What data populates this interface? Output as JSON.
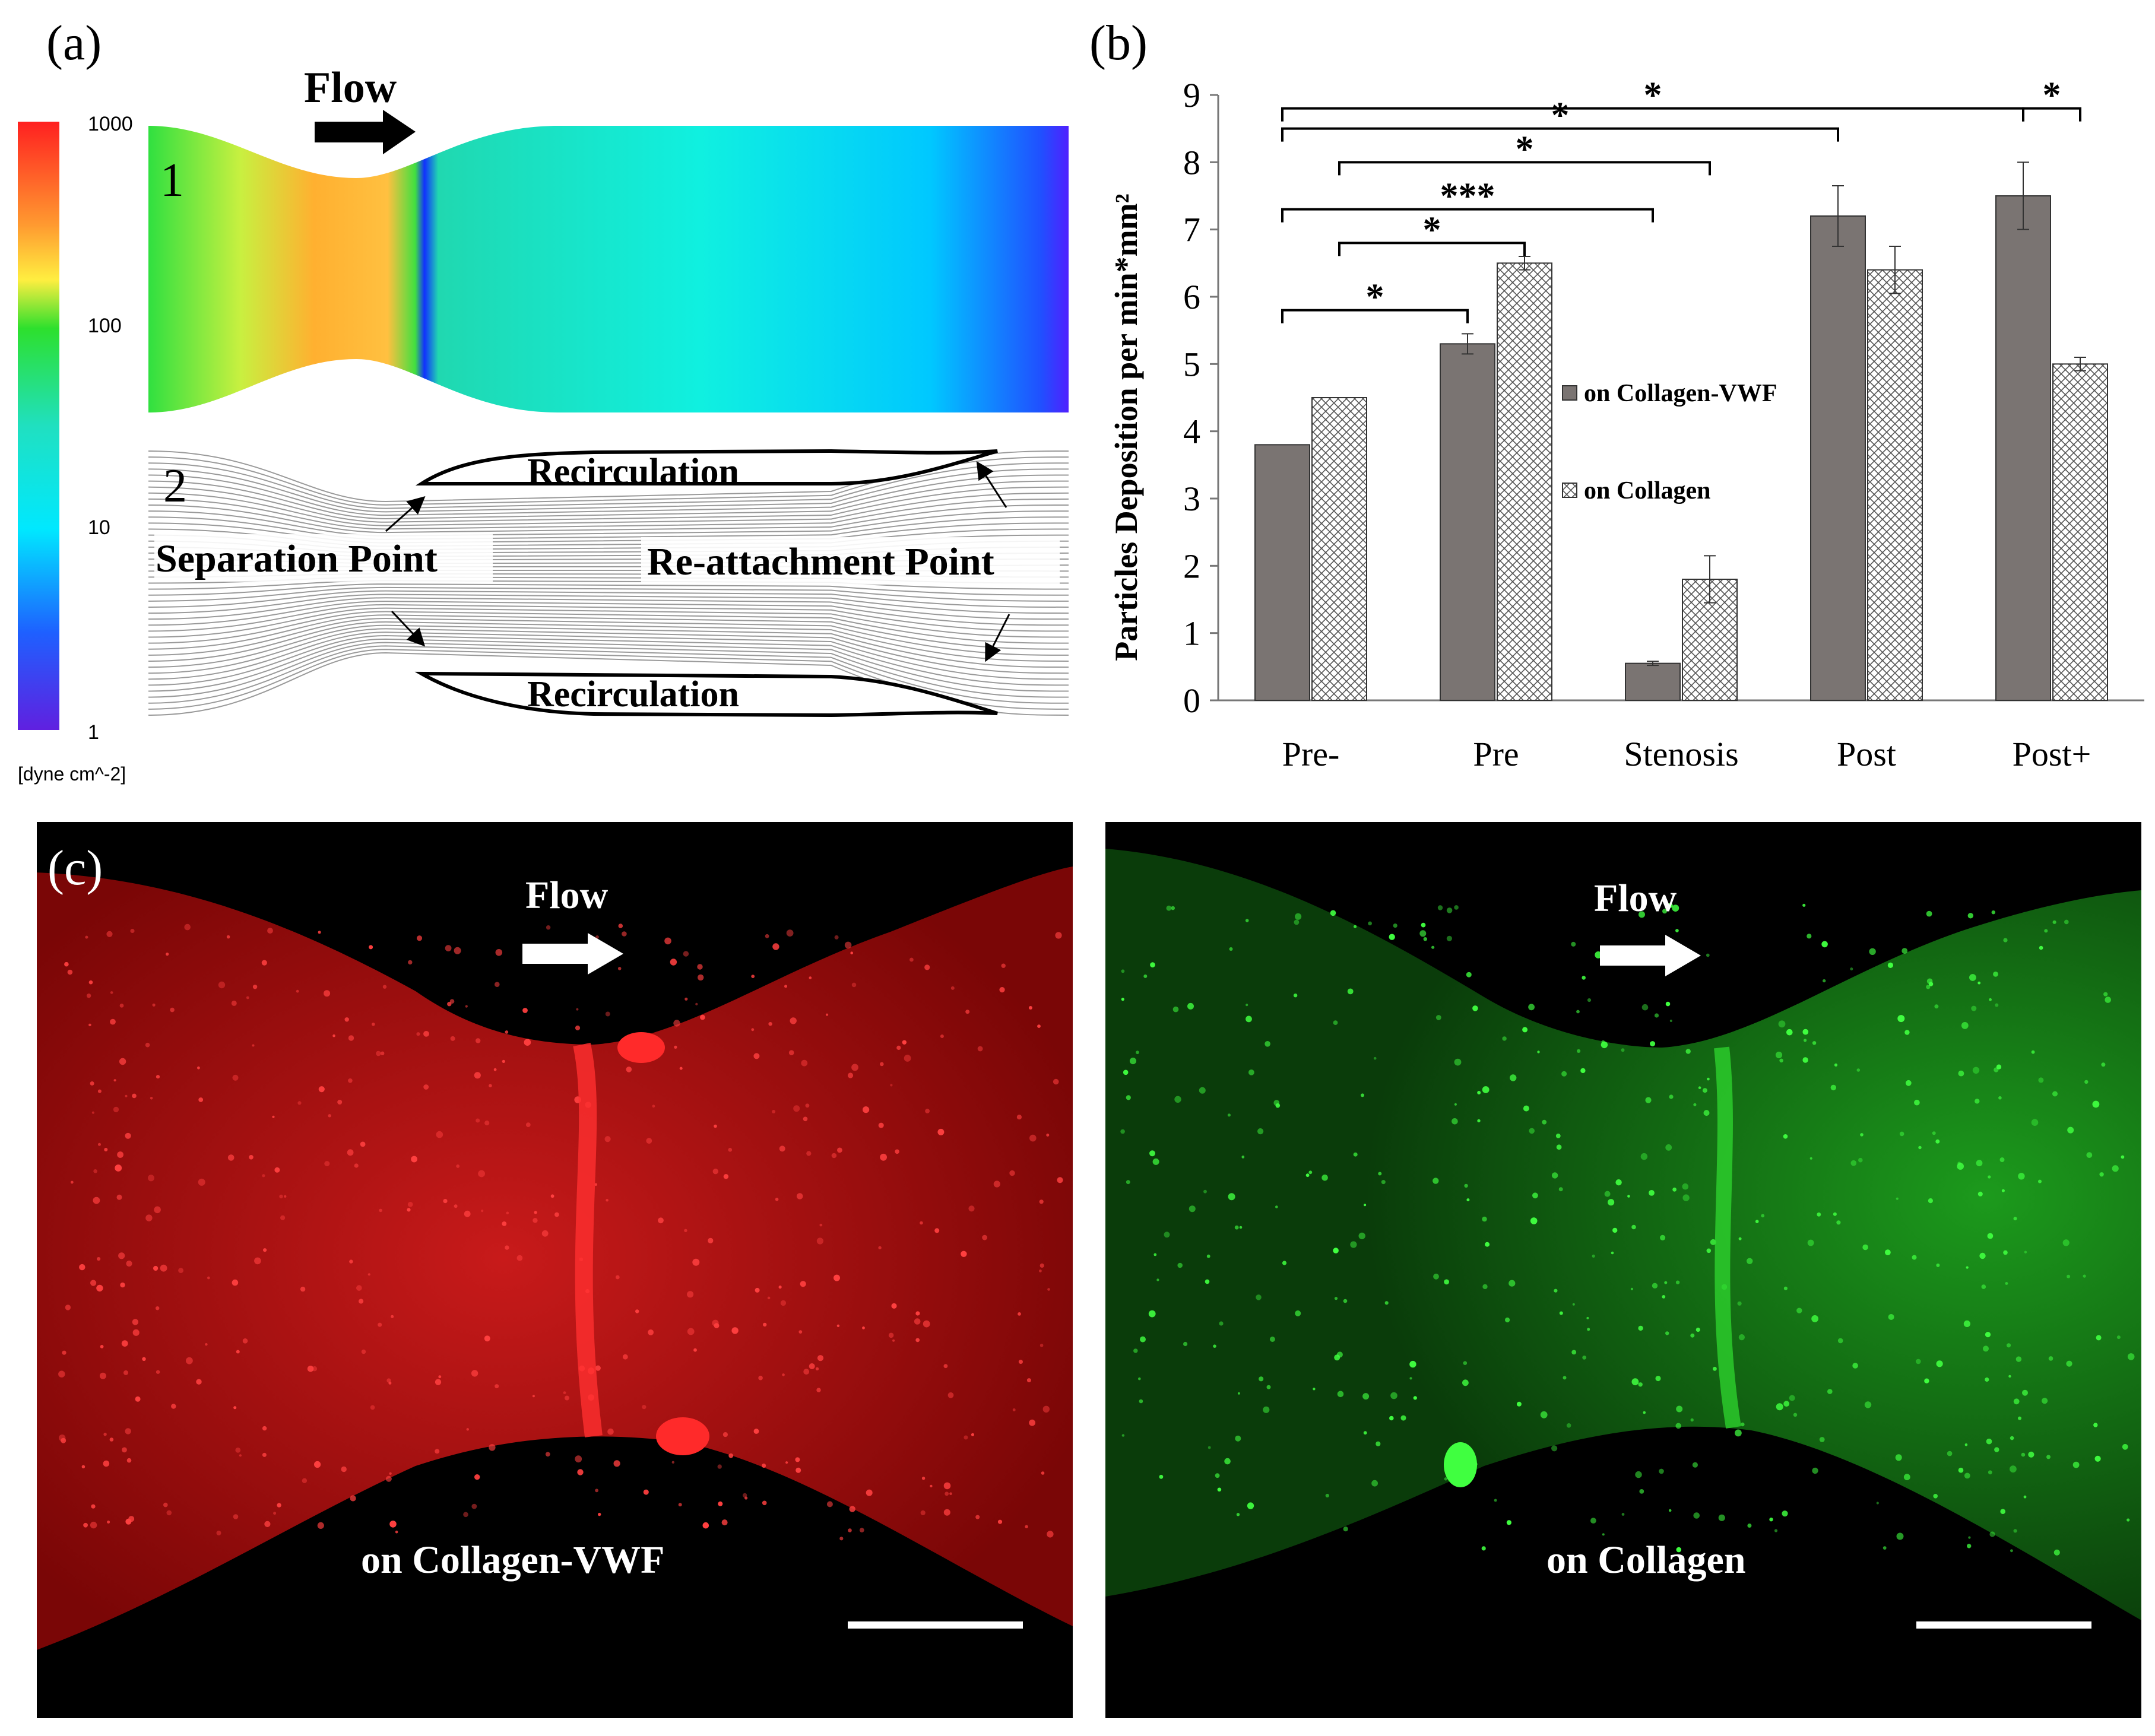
{
  "panel_a": {
    "label": "(a)",
    "flow_label": "Flow",
    "sub1_label": "1",
    "sub2_label": "2",
    "colorbar_ticks": [
      "1000",
      "100",
      "10",
      "1"
    ],
    "colorbar_unit": "[dyne cm^-2]",
    "colorbar_colors": [
      "#ff2020",
      "#ff9a30",
      "#ffee40",
      "#2de02d",
      "#20e0c0",
      "#00e8ff",
      "#1e60ff",
      "#6020e0"
    ],
    "recirculation_top": "Recirculation",
    "recirculation_bottom": "Recirculation",
    "separation_label": "Separation Point",
    "reattachment_label": "Re-attachment Point"
  },
  "panel_b": {
    "label": "(b)",
    "significance": [
      "*",
      "*",
      "*",
      "***",
      "*",
      "*",
      "*"
    ]
  },
  "chart_data": {
    "type": "bar",
    "categories": [
      "Pre-",
      "Pre",
      "Stenosis",
      "Post",
      "Post+"
    ],
    "series": [
      {
        "name": "on Collagen-VWF",
        "values": [
          3.8,
          5.3,
          0.55,
          7.2,
          7.5
        ],
        "errors": [
          0,
          0.15,
          0.03,
          0.45,
          0.5
        ],
        "color": "#7a7472"
      },
      {
        "name": "on Collagen",
        "values": [
          4.5,
          6.5,
          1.8,
          6.4,
          5.0
        ],
        "errors": [
          0,
          0.1,
          0.35,
          0.35,
          0.1
        ],
        "color": "#ffffff",
        "pattern": "crosshatch"
      }
    ],
    "ylabel": "Particles Deposition per min*mm²",
    "ylim": [
      0,
      9
    ],
    "yticks": [
      "0",
      "1",
      "2",
      "3",
      "4",
      "5",
      "6",
      "7",
      "8",
      "9"
    ],
    "legend_position": "right"
  },
  "panel_c": {
    "label": "(c)",
    "left_flow": "Flow",
    "right_flow": "Flow",
    "left_caption": "on Collagen-VWF",
    "right_caption": "on Collagen",
    "left_color": "#d01818",
    "right_color": "#22b822"
  }
}
